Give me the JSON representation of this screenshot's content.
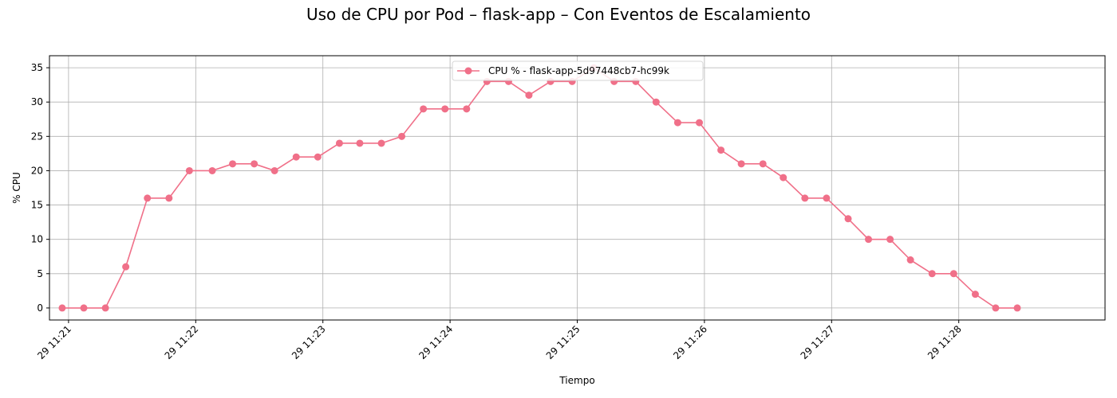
{
  "chart_data": {
    "type": "line",
    "title": "Uso de CPU por Pod – flask-app – Con Eventos de Escalamiento",
    "xlabel": "Tiempo",
    "ylabel": "% CPU",
    "xlim": [
      -0.15,
      8.15
    ],
    "ylim": [
      -1.75,
      36.75
    ],
    "grid": true,
    "legend_position": "top-center",
    "x_ticks": [
      {
        "value": 0,
        "label": "29 11:21"
      },
      {
        "value": 1,
        "label": "29 11:22"
      },
      {
        "value": 2,
        "label": "29 11:23"
      },
      {
        "value": 3,
        "label": "29 11:24"
      },
      {
        "value": 4,
        "label": "29 11:25"
      },
      {
        "value": 5,
        "label": "29 11:26"
      },
      {
        "value": 6,
        "label": "29 11:27"
      },
      {
        "value": 7,
        "label": "29 11:28"
      }
    ],
    "y_ticks": [
      0,
      5,
      10,
      15,
      20,
      25,
      30,
      35
    ],
    "series": [
      {
        "name": "CPU % - flask-app-5d97448cb7-hc99k",
        "color": "#f07089",
        "x": [
          -0.05,
          0.12,
          0.29,
          0.45,
          0.62,
          0.79,
          0.95,
          1.13,
          1.29,
          1.46,
          1.62,
          1.79,
          1.96,
          2.13,
          2.29,
          2.46,
          2.62,
          2.79,
          2.96,
          3.13,
          3.29,
          3.46,
          3.62,
          3.79,
          3.96,
          4.13,
          4.29,
          4.46,
          4.62,
          4.79,
          4.96,
          5.13,
          5.29,
          5.46,
          5.62,
          5.79,
          5.96,
          6.13,
          6.29,
          6.46,
          6.62,
          6.79,
          6.96,
          7.13,
          7.29,
          7.46
        ],
        "values": [
          0,
          0,
          0,
          6,
          16,
          16,
          20,
          20,
          21,
          21,
          20,
          22,
          22,
          24,
          24,
          24,
          25,
          29,
          29,
          29,
          33,
          33,
          31,
          33,
          33,
          35,
          33,
          33,
          30,
          27,
          27,
          23,
          21,
          21,
          19,
          16,
          16,
          13,
          10,
          10,
          7,
          5,
          5,
          2,
          0,
          0
        ]
      }
    ]
  }
}
